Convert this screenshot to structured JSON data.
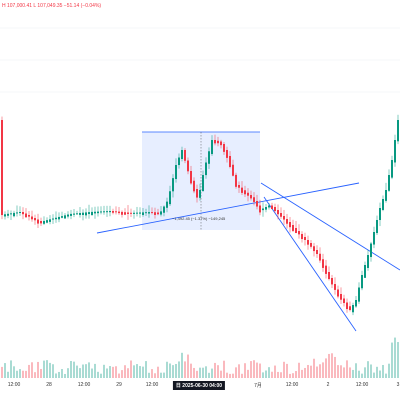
{
  "header": {
    "ohlc_text": "H 107,000.41  L 107,049.35  −51.14 (−0.04%)"
  },
  "x_axis": {
    "ticks": [
      {
        "label": "12:00",
        "x": 14,
        "cursor": false
      },
      {
        "label": "28",
        "x": 49,
        "cursor": false
      },
      {
        "label": "12:00",
        "x": 84,
        "cursor": false
      },
      {
        "label": "29",
        "x": 119,
        "cursor": false
      },
      {
        "label": "12:00",
        "x": 152,
        "cursor": false
      },
      {
        "label": "日 2025-06-30  04:00",
        "x": 199,
        "cursor": true
      },
      {
        "label": "7月",
        "x": 258,
        "cursor": false
      },
      {
        "label": "12:00",
        "x": 292,
        "cursor": false
      },
      {
        "label": "2",
        "x": 328,
        "cursor": false
      },
      {
        "label": "12:00",
        "x": 362,
        "cursor": false
      },
      {
        "label": "3",
        "x": 398,
        "cursor": false
      }
    ]
  },
  "measurement": {
    "label": "−1,492.45 (−1.37%) −149,245"
  },
  "colors": {
    "up": "#089981",
    "down": "#f23645",
    "trendline": "#2962ff",
    "measure_fill": "#e3ebff",
    "measure_border": "#2962ff"
  }
}
